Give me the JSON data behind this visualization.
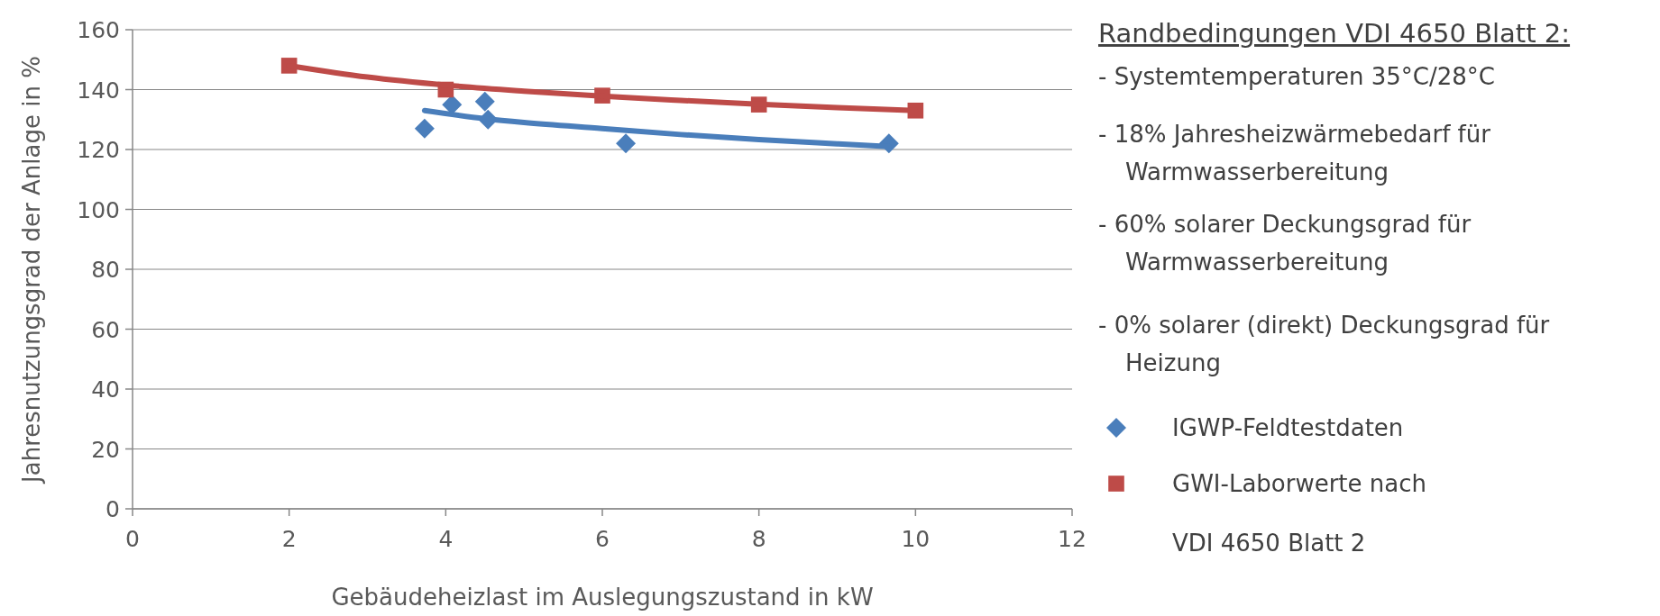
{
  "chart_data": {
    "type": "scatter",
    "xlabel": "Gebäudeheizlast im Auslegungszustand in kW",
    "ylabel": "Jahresnutzungsgrad der Anlage in %",
    "xlim": [
      0,
      12
    ],
    "xticks": [
      0,
      2,
      4,
      6,
      8,
      10,
      12
    ],
    "ylim": [
      0,
      160
    ],
    "yticks": [
      0,
      20,
      40,
      60,
      80,
      100,
      120,
      140,
      160
    ],
    "grid": "y",
    "legend": "right",
    "series": [
      {
        "name": "IGWP-Feldtestdaten",
        "color": "#4a7ebb",
        "marker": "diamond",
        "x": [
          3.73,
          4.08,
          4.5,
          4.54,
          6.3,
          9.66
        ],
        "values": [
          127,
          135,
          136,
          130,
          122,
          122
        ]
      },
      {
        "name": "GWI-Laborwerte nach VDI 4650 Blatt 2",
        "color": "#be4b48",
        "marker": "square",
        "x": [
          2,
          4,
          6,
          8,
          10
        ],
        "values": [
          148,
          140,
          138,
          135,
          133
        ]
      },
      {
        "type": "line",
        "color": "#4a7ebb",
        "x": [
          3.73,
          4.5,
          5,
          6,
          7,
          8,
          9,
          9.66
        ],
        "values": [
          133,
          130.3,
          129,
          127,
          125,
          123.3,
          121.9,
          121
        ]
      },
      {
        "type": "line",
        "color": "#be4b48",
        "x": [
          2,
          3,
          4,
          5,
          6,
          7,
          8,
          9,
          10
        ],
        "values": [
          148,
          144.2,
          141.5,
          139.5,
          137.8,
          136.4,
          135.1,
          134,
          133
        ]
      }
    ],
    "annotations": [
      "Randbedingungen VDI 4650 Blatt 2:",
      "- Systemtemperaturen 35°C/28°C",
      "- 18% Jahresheizwärmebedarf für Warmwasserbereitung",
      "- 60% solarer Deckungsgrad für Warmwasserbereitung",
      "- 0% solarer (direkt) Deckungsgrad für Heizung"
    ]
  }
}
